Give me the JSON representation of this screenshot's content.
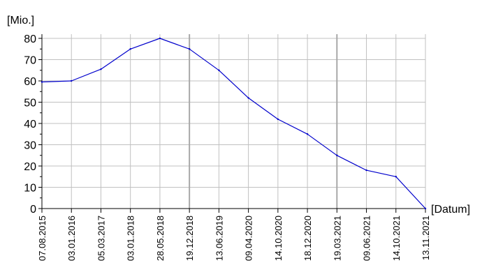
{
  "chart_data": {
    "type": "line",
    "title": "",
    "ylabel": "[Mio.]",
    "xlabel": "[Datum]",
    "ylim": [
      0,
      80
    ],
    "yticks": [
      0,
      10,
      20,
      30,
      40,
      50,
      60,
      70,
      80
    ],
    "grid": true,
    "legend": "none",
    "line_color": "#0000cc",
    "categories": [
      "07.08.2015",
      "03.01.2016",
      "05.03.2017",
      "03.01.2018",
      "28.05.2018",
      "19.12.2018",
      "13.06.2019",
      "09.04.2020",
      "14.10.2020",
      "18.12.2020",
      "19.03.2021",
      "09.06.2021",
      "14.10.2021",
      "13.11.2021"
    ],
    "values": [
      59.5,
      60,
      65.5,
      75,
      80,
      75,
      65,
      52,
      42,
      35,
      25,
      18,
      15,
      0
    ]
  }
}
